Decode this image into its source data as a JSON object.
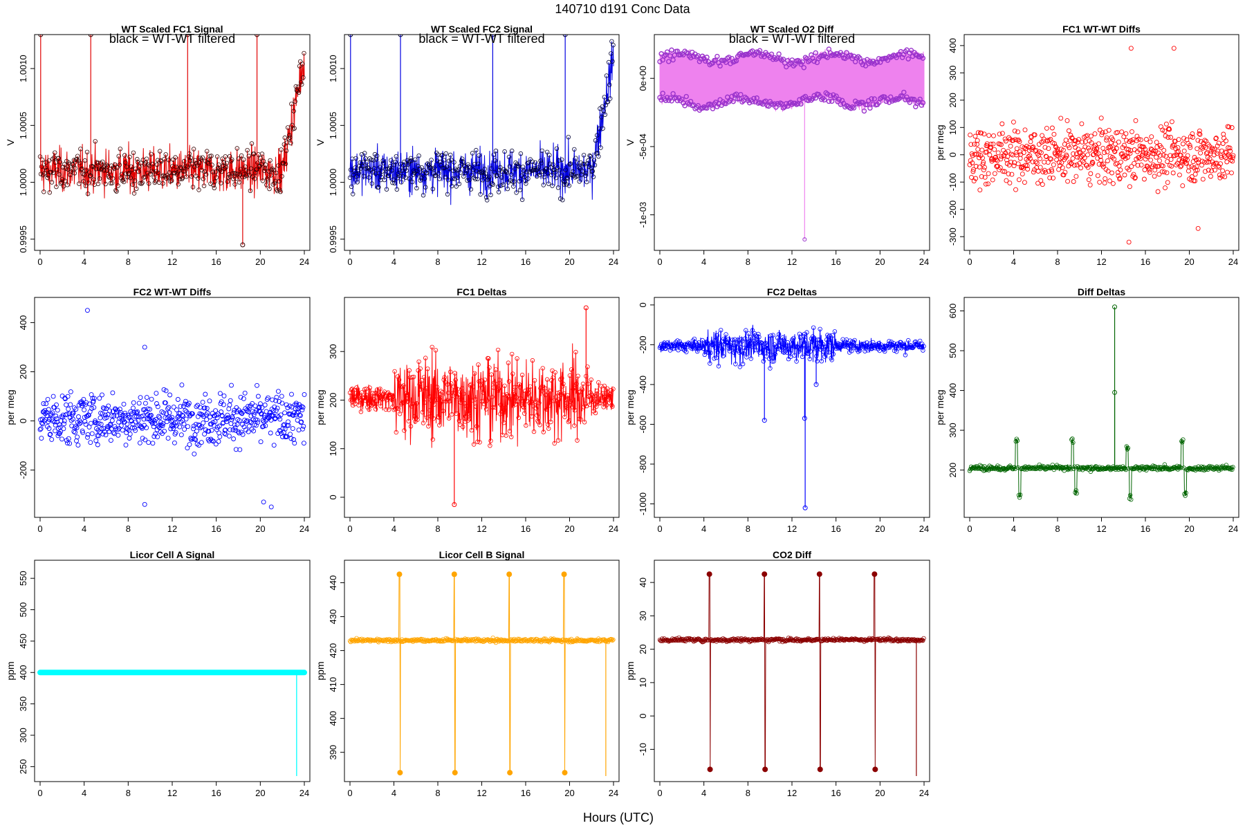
{
  "figure": {
    "title": "140710    d191    Conc Data",
    "xlabel": "Hours (UTC)"
  },
  "chart_data": [
    {
      "id": "p0",
      "type": "line",
      "title": "WT Scaled FC1 Signal",
      "annotation": "black = WT-WT filtered",
      "ylabel": "V",
      "xlim": [
        0,
        24
      ],
      "ylim": [
        0.99945,
        1.00125
      ],
      "xticks": [
        "0",
        "4",
        "8",
        "12",
        "16",
        "20",
        "24"
      ],
      "yticks": [
        {
          "v": 0.9995,
          "label": "0.9995"
        },
        {
          "v": 1.0,
          "label": "1.0000"
        },
        {
          "v": 1.0005,
          "label": "1.0005"
        },
        {
          "v": 1.001,
          "label": "1.0010"
        }
      ],
      "series": [
        {
          "color": "#e00000",
          "base": 1.0001,
          "noise": 0.00016,
          "trend": [
            [
              0,
              1.0001
            ],
            [
              22,
              1.0001
            ],
            [
              24,
              1.0011
            ]
          ],
          "spikes": [
            [
              0.05,
              1.0014
            ],
            [
              4.6,
              1.0014
            ],
            [
              13.4,
              1.0014
            ],
            [
              19.7,
              1.0014
            ],
            [
              18.4,
              0.99945
            ]
          ],
          "filled": false,
          "mode": "lines+points",
          "pcolor": "#330000"
        }
      ]
    },
    {
      "id": "p1",
      "type": "line",
      "title": "WT Scaled FC2 Signal",
      "annotation": "black = WT-WT filtered",
      "ylabel": "V",
      "xlim": [
        0,
        24
      ],
      "ylim": [
        0.99945,
        1.00125
      ],
      "xticks": [
        "0",
        "4",
        "8",
        "12",
        "16",
        "20",
        "24"
      ],
      "yticks": [
        {
          "v": 0.9995,
          "label": "0.9995"
        },
        {
          "v": 1.0,
          "label": "1.0000"
        },
        {
          "v": 1.0005,
          "label": "1.0005"
        },
        {
          "v": 1.001,
          "label": "1.0010"
        }
      ],
      "series": [
        {
          "color": "#0000e0",
          "base": 1.0001,
          "noise": 0.00016,
          "trend": [
            [
              0,
              1.0001
            ],
            [
              22,
              1.0001
            ],
            [
              24,
              1.0011
            ]
          ],
          "spikes": [
            [
              0.05,
              1.0014
            ],
            [
              4.6,
              1.0014
            ],
            [
              13.0,
              1.0014
            ],
            [
              19.6,
              1.0014
            ]
          ],
          "filled": false,
          "mode": "lines+points",
          "pcolor": "#000033"
        }
      ]
    },
    {
      "id": "p2",
      "type": "band",
      "title": "WT Scaled O2 Diff",
      "annotation": "black = WT-WT filtered",
      "ylabel": "V",
      "xlim": [
        0,
        24
      ],
      "ylim": [
        -0.00122,
        0.00028
      ],
      "xticks": [
        "0",
        "4",
        "8",
        "12",
        "16",
        "20",
        "24"
      ],
      "yticks": [
        {
          "v": 0,
          "label": "0e+00"
        },
        {
          "v": -0.0005,
          "label": "-5e-04"
        },
        {
          "v": -0.001,
          "label": "-1e-03"
        }
      ],
      "series": [
        {
          "color": "#ee82ee",
          "upper": 0.00015,
          "lower": -0.00017,
          "noise": 3e-05,
          "pcolor": "#9933cc",
          "spikes": [
            [
              13.15,
              -0.00118
            ]
          ]
        }
      ]
    },
    {
      "id": "p3",
      "type": "scatter",
      "title": "FC1 WT-WT Diffs",
      "ylabel": "per meg",
      "xlim": [
        0,
        24
      ],
      "ylim": [
        -330,
        420
      ],
      "xticks": [
        "0",
        "4",
        "8",
        "12",
        "16",
        "20",
        "24"
      ],
      "yticks": [
        {
          "v": -300,
          "label": "-300"
        },
        {
          "v": -200,
          "label": "-200"
        },
        {
          "v": -100,
          "label": "-100"
        },
        {
          "v": 0,
          "label": "0"
        },
        {
          "v": 100,
          "label": "100"
        },
        {
          "v": 200,
          "label": "200"
        },
        {
          "v": 300,
          "label": "300"
        },
        {
          "v": 400,
          "label": "400"
        }
      ],
      "series": [
        {
          "color": "#ff0000",
          "n": 620,
          "base": 0,
          "spread": 85,
          "outliers": [
            [
              14.7,
              390
            ],
            [
              18.6,
              390
            ],
            [
              14.5,
              -320
            ],
            [
              20.8,
              -270
            ]
          ]
        }
      ]
    },
    {
      "id": "p4",
      "type": "scatter",
      "title": "FC2 WT-WT Diffs",
      "ylabel": "per meg",
      "xlim": [
        0,
        24
      ],
      "ylim": [
        -370,
        480
      ],
      "xticks": [
        "0",
        "4",
        "8",
        "12",
        "16",
        "20",
        "24"
      ],
      "yticks": [
        {
          "v": -200,
          "label": "-200"
        },
        {
          "v": 0,
          "label": "0"
        },
        {
          "v": 200,
          "label": "200"
        },
        {
          "v": 400,
          "label": "400"
        }
      ],
      "series": [
        {
          "color": "#0000ff",
          "n": 620,
          "base": 10,
          "spread": 90,
          "outliers": [
            [
              4.3,
              450
            ],
            [
              9.5,
              300
            ],
            [
              9.5,
              -340
            ],
            [
              21.0,
              -350
            ],
            [
              20.3,
              -330
            ]
          ]
        }
      ]
    },
    {
      "id": "p5",
      "type": "line",
      "title": "FC1 Deltas",
      "ylabel": "per meg",
      "xlim": [
        0,
        24
      ],
      "ylim": [
        -30,
        400
      ],
      "xticks": [
        "0",
        "4",
        "8",
        "12",
        "16",
        "20",
        "24"
      ],
      "yticks": [
        {
          "v": 0,
          "label": "0"
        },
        {
          "v": 100,
          "label": "100"
        },
        {
          "v": 200,
          "label": "200"
        },
        {
          "v": 300,
          "label": "300"
        }
      ],
      "series": [
        {
          "color": "#ff0000",
          "base": 205,
          "noise": 22,
          "volatile": [
            [
              4,
              22,
              70
            ]
          ],
          "spikes": [
            [
              9.5,
              -15
            ],
            [
              21.5,
              390
            ]
          ],
          "filled": false,
          "mode": "lines+points",
          "pcolor": "#ff0000"
        }
      ]
    },
    {
      "id": "p6",
      "type": "line",
      "title": "FC2 Deltas",
      "ylabel": "per meg",
      "xlim": [
        0,
        24
      ],
      "ylim": [
        -1040,
        10
      ],
      "xticks": [
        "0",
        "4",
        "8",
        "12",
        "16",
        "20",
        "24"
      ],
      "yticks": [
        {
          "v": -1000,
          "label": "-1000"
        },
        {
          "v": -800,
          "label": "-800"
        },
        {
          "v": -600,
          "label": "-600"
        },
        {
          "v": -400,
          "label": "-400"
        },
        {
          "v": -200,
          "label": "-200"
        },
        {
          "v": 0,
          "label": "0"
        }
      ],
      "series": [
        {
          "color": "#0000ff",
          "base": -205,
          "noise": 25,
          "volatile": [
            [
              4,
              16,
              70
            ]
          ],
          "spikes": [
            [
              9.5,
              -580
            ],
            [
              13.2,
              -1020
            ],
            [
              13.15,
              -570
            ],
            [
              14.2,
              -400
            ]
          ],
          "filled": false,
          "mode": "lines+points",
          "pcolor": "#0000ff"
        }
      ]
    },
    {
      "id": "p7",
      "type": "line",
      "title": "Diff Deltas",
      "ylabel": "per meg",
      "xlim": [
        0,
        24
      ],
      "ylim": [
        95,
        620
      ],
      "xticks": [
        "0",
        "4",
        "8",
        "12",
        "16",
        "20",
        "24"
      ],
      "yticks": [
        {
          "v": 200,
          "label": "200"
        },
        {
          "v": 300,
          "label": "300"
        },
        {
          "v": 400,
          "label": "400"
        },
        {
          "v": 500,
          "label": "500"
        },
        {
          "v": 600,
          "label": "600"
        }
      ],
      "series": [
        {
          "color": "#006400",
          "base": 205,
          "noise": 5,
          "bursts": [
            [
              4.4,
              280,
              130
            ],
            [
              9.5,
              280,
              135
            ],
            [
              14.5,
              265,
              125
            ],
            [
              19.5,
              280,
              135
            ]
          ],
          "spikes": [
            [
              13.2,
              610
            ],
            [
              13.2,
              395
            ]
          ],
          "filled": false,
          "mode": "lines+points",
          "pcolor": "#006400"
        }
      ]
    },
    {
      "id": "p8",
      "type": "flat",
      "title": "Licor Cell A Signal",
      "ylabel": "ppm",
      "xlim": [
        0,
        24
      ],
      "ylim": [
        235,
        570
      ],
      "xticks": [
        "0",
        "4",
        "8",
        "12",
        "16",
        "20",
        "24"
      ],
      "yticks": [
        {
          "v": 250,
          "label": "250"
        },
        {
          "v": 300,
          "label": "300"
        },
        {
          "v": 350,
          "label": "350"
        },
        {
          "v": 400,
          "label": "400"
        },
        {
          "v": 450,
          "label": "450"
        },
        {
          "v": 500,
          "label": "500"
        },
        {
          "v": 550,
          "label": "550"
        }
      ],
      "series": [
        {
          "color": "#00ffff",
          "value": 400,
          "xend": 24.0,
          "drop": [
            23.3,
            235
          ]
        }
      ]
    },
    {
      "id": "p9",
      "type": "line",
      "title": "Licor Cell B Signal",
      "ylabel": "ppm",
      "xlim": [
        0,
        24
      ],
      "ylim": [
        383,
        445
      ],
      "xticks": [
        "0",
        "4",
        "8",
        "12",
        "16",
        "20",
        "24"
      ],
      "yticks": [
        {
          "v": 390,
          "label": "390"
        },
        {
          "v": 400,
          "label": "400"
        },
        {
          "v": 410,
          "label": "410"
        },
        {
          "v": 420,
          "label": "420"
        },
        {
          "v": 430,
          "label": "430"
        },
        {
          "v": 440,
          "label": "440"
        }
      ],
      "series": [
        {
          "color": "#ffa500",
          "base": 423,
          "noise": 0.4,
          "excursions": [
            [
              4.5,
              442.5,
              384
            ],
            [
              9.5,
              442.5,
              384
            ],
            [
              14.5,
              442.5,
              384
            ],
            [
              19.5,
              442.5,
              384
            ]
          ],
          "drop": [
            23.3,
            383
          ],
          "filled": false,
          "mode": "lines+points",
          "pcolor": "#ffa500"
        }
      ]
    },
    {
      "id": "p10",
      "type": "line",
      "title": "CO2 Diff",
      "ylabel": "ppm",
      "xlim": [
        0,
        24
      ],
      "ylim": [
        -18,
        45
      ],
      "xticks": [
        "0",
        "4",
        "8",
        "12",
        "16",
        "20",
        "24"
      ],
      "yticks": [
        {
          "v": -10,
          "label": "-10"
        },
        {
          "v": 0,
          "label": "0"
        },
        {
          "v": 10,
          "label": "10"
        },
        {
          "v": 20,
          "label": "20"
        },
        {
          "v": 30,
          "label": "30"
        },
        {
          "v": 40,
          "label": "40"
        }
      ],
      "series": [
        {
          "color": "#8b0000",
          "base": 22.8,
          "noise": 0.4,
          "excursions": [
            [
              4.5,
              42.5,
              -16
            ],
            [
              9.5,
              42.5,
              -16
            ],
            [
              14.5,
              42.5,
              -16
            ],
            [
              19.5,
              42.5,
              -16
            ]
          ],
          "drop": [
            23.3,
            -18
          ],
          "filled": false,
          "mode": "lines+points",
          "pcolor": "#8b0000"
        }
      ]
    }
  ]
}
